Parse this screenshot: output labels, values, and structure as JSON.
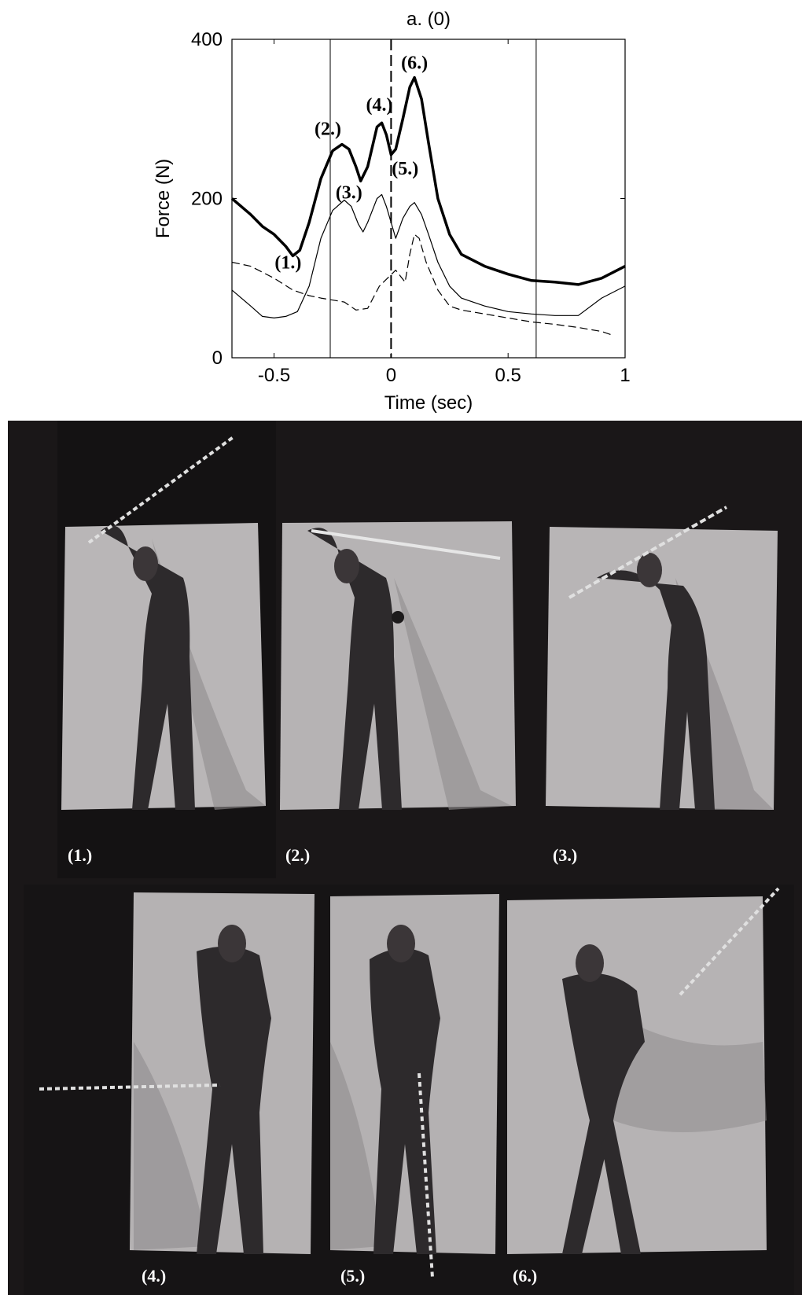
{
  "chart_data": {
    "type": "line",
    "title": "a. (0)",
    "xlabel": "Time (sec)",
    "ylabel": "Force (N)",
    "xlim": [
      -0.68,
      1.0
    ],
    "ylim": [
      0,
      400
    ],
    "xticks": [
      -0.5,
      0,
      0.5,
      1
    ],
    "xtick_labels": [
      "-0.5",
      "0",
      "0.5",
      "1"
    ],
    "yticks": [
      0,
      200,
      400
    ],
    "ytick_labels": [
      "0",
      "200",
      "400"
    ],
    "vlines": [
      -0.26,
      0.62
    ],
    "dashed_vline": 0,
    "grid": false,
    "series": [
      {
        "style": "thick",
        "x": [
          -0.68,
          -0.6,
          -0.55,
          -0.5,
          -0.45,
          -0.42,
          -0.39,
          -0.35,
          -0.3,
          -0.25,
          -0.21,
          -0.18,
          -0.15,
          -0.13,
          -0.1,
          -0.06,
          -0.04,
          -0.02,
          0,
          0.02,
          0.05,
          0.08,
          0.1,
          0.13,
          0.16,
          0.2,
          0.25,
          0.3,
          0.4,
          0.5,
          0.6,
          0.7,
          0.8,
          0.9,
          1.0
        ],
        "y": [
          200,
          180,
          165,
          155,
          140,
          128,
          135,
          170,
          225,
          260,
          268,
          262,
          240,
          222,
          240,
          290,
          295,
          280,
          255,
          262,
          300,
          340,
          352,
          325,
          270,
          200,
          155,
          130,
          115,
          105,
          97,
          95,
          92,
          100,
          115
        ]
      },
      {
        "style": "thin",
        "x": [
          -0.68,
          -0.6,
          -0.55,
          -0.5,
          -0.45,
          -0.4,
          -0.35,
          -0.3,
          -0.25,
          -0.2,
          -0.17,
          -0.14,
          -0.12,
          -0.1,
          -0.06,
          -0.04,
          -0.02,
          0.02,
          0.05,
          0.08,
          0.1,
          0.13,
          0.16,
          0.2,
          0.25,
          0.3,
          0.4,
          0.5,
          0.6,
          0.7,
          0.8,
          0.9,
          1.0
        ],
        "y": [
          85,
          65,
          52,
          50,
          52,
          58,
          90,
          150,
          185,
          198,
          190,
          168,
          158,
          170,
          200,
          205,
          190,
          150,
          175,
          190,
          195,
          180,
          155,
          120,
          90,
          75,
          65,
          58,
          55,
          53,
          53,
          75,
          90
        ]
      },
      {
        "style": "dashed",
        "x": [
          -0.68,
          -0.6,
          -0.5,
          -0.42,
          -0.35,
          -0.3,
          -0.2,
          -0.15,
          -0.1,
          -0.05,
          0.02,
          0.06,
          0.08,
          0.1,
          0.12,
          0.15,
          0.2,
          0.25,
          0.3,
          0.4,
          0.5,
          0.6,
          0.7,
          0.8,
          0.9,
          0.95
        ],
        "y": [
          120,
          115,
          100,
          85,
          78,
          75,
          70,
          60,
          62,
          90,
          110,
          95,
          130,
          155,
          150,
          120,
          85,
          65,
          60,
          55,
          50,
          45,
          42,
          38,
          33,
          28
        ]
      }
    ],
    "annotations": [
      {
        "text": "(1.)",
        "x": -0.44,
        "y": 112
      },
      {
        "text": "(2.)",
        "x": -0.27,
        "y": 280
      },
      {
        "text": "(3.)",
        "x": -0.18,
        "y": 200
      },
      {
        "text": "(4.)",
        "x": -0.05,
        "y": 310
      },
      {
        "text": "(5.)",
        "x": 0.06,
        "y": 230
      },
      {
        "text": "(6.)",
        "x": 0.1,
        "y": 363
      }
    ]
  },
  "photo_labels": [
    "(1.)",
    "(2.)",
    "(3.)",
    "(4.)",
    "(5.)",
    "(6.)"
  ]
}
